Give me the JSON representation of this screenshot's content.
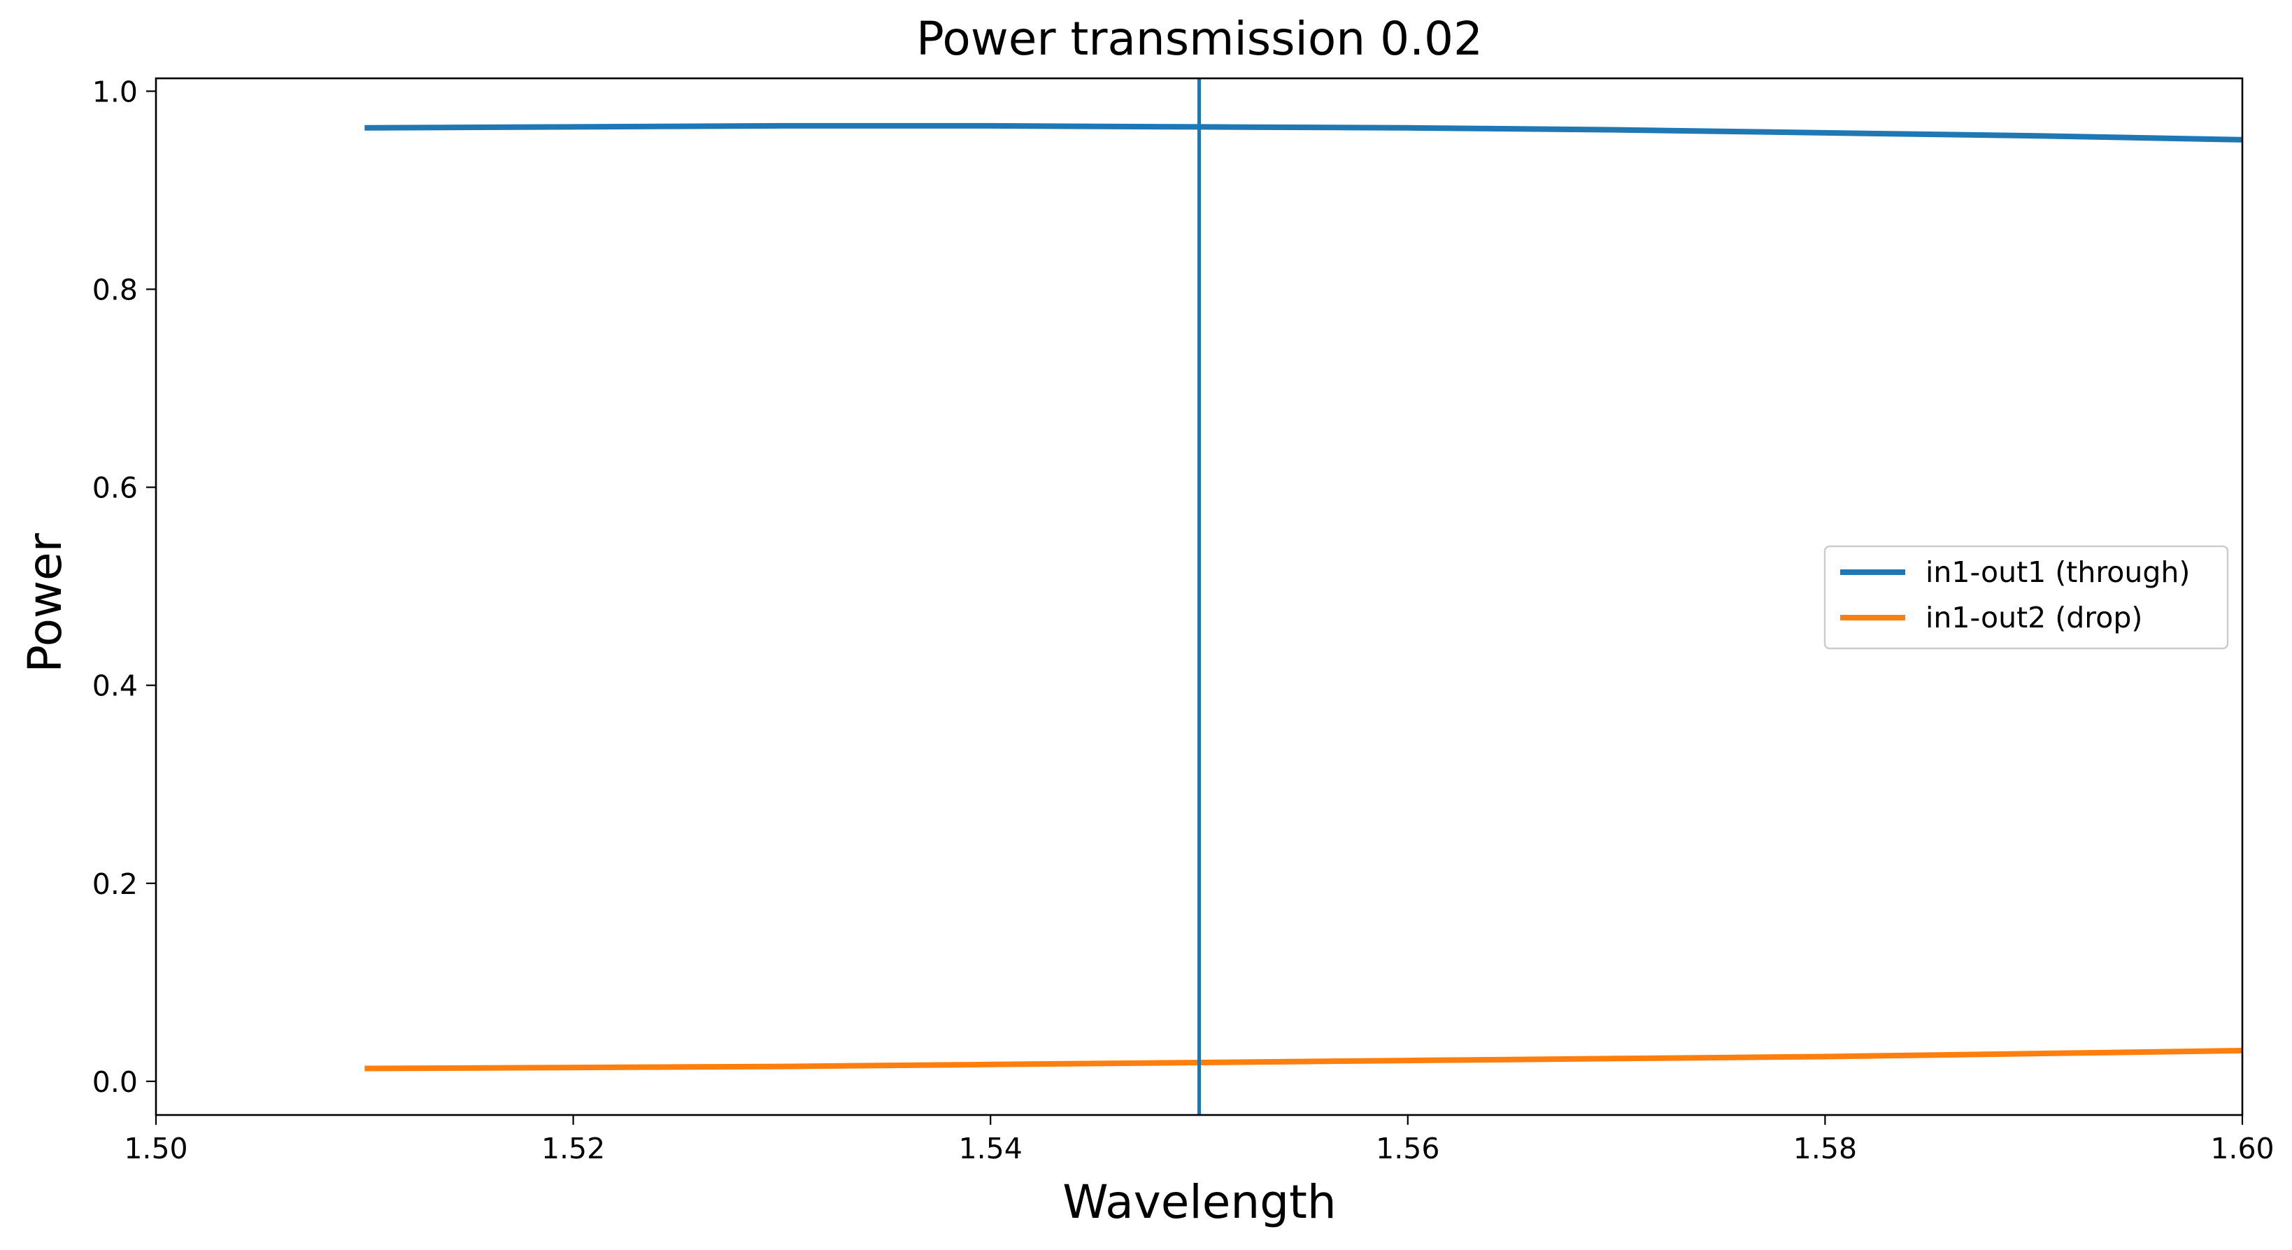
{
  "chart_data": {
    "type": "line",
    "title": "Power transmission 0.02",
    "xlabel": "Wavelength",
    "ylabel": "Power",
    "xlim": [
      1.5,
      1.6
    ],
    "ylim": [
      -0.034,
      1.013
    ],
    "x_ticks": [
      1.5,
      1.52,
      1.54,
      1.56,
      1.58,
      1.6
    ],
    "x_tick_labels": [
      "1.50",
      "1.52",
      "1.54",
      "1.56",
      "1.58",
      "1.60"
    ],
    "y_ticks": [
      0.0,
      0.2,
      0.4,
      0.6,
      0.8,
      1.0
    ],
    "y_tick_labels": [
      "0.0",
      "0.2",
      "0.4",
      "0.6",
      "0.8",
      "1.0"
    ],
    "grid": false,
    "legend_position": "center-right",
    "series": [
      {
        "name": "in1-out1 (through)",
        "color": "#1f77b4",
        "x": [
          1.51,
          1.52,
          1.53,
          1.54,
          1.55,
          1.56,
          1.57,
          1.58,
          1.59,
          1.6
        ],
        "y": [
          0.963,
          0.964,
          0.965,
          0.965,
          0.964,
          0.963,
          0.961,
          0.958,
          0.955,
          0.951
        ]
      },
      {
        "name": "in1-out2 (drop)",
        "color": "#ff7f0e",
        "x": [
          1.51,
          1.52,
          1.53,
          1.54,
          1.55,
          1.56,
          1.57,
          1.58,
          1.59,
          1.6
        ],
        "y": [
          0.013,
          0.014,
          0.015,
          0.017,
          0.019,
          0.021,
          0.023,
          0.025,
          0.028,
          0.031
        ]
      }
    ],
    "vlines": [
      {
        "x": 1.55,
        "color": "#1f77b4"
      }
    ]
  }
}
